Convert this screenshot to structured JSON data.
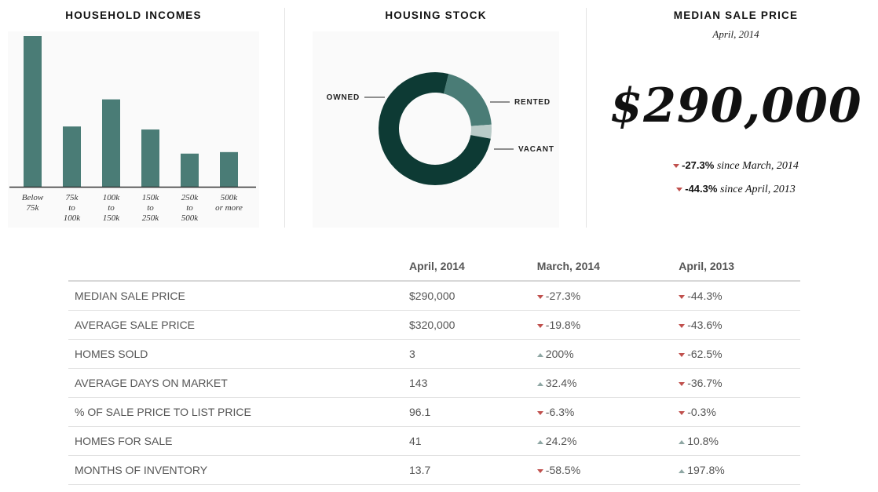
{
  "household_incomes": {
    "title": "HOUSEHOLD INCOMES",
    "chart_data": {
      "type": "bar",
      "title": "HOUSEHOLD INCOMES",
      "categories": [
        [
          "Below",
          "75k"
        ],
        [
          "75k",
          "to",
          "100k"
        ],
        [
          "100k",
          "to",
          "150k"
        ],
        [
          "150k",
          "to",
          "250k"
        ],
        [
          "250k",
          "to",
          "500k"
        ],
        [
          "500k",
          "or more"
        ]
      ],
      "values": [
        100,
        40,
        58,
        38,
        22,
        23
      ],
      "ylim": [
        0,
        100
      ],
      "bar_color": "#4a7c76"
    }
  },
  "housing_stock": {
    "title": "HOUSING STOCK",
    "chart_data": {
      "type": "pie",
      "title": "HOUSING STOCK",
      "labels": [
        "OWNED",
        "RENTED",
        "VACANT"
      ],
      "values": [
        76,
        20,
        4
      ],
      "colors": [
        "#0d3a34",
        "#4a7c76",
        "#b9cbc8"
      ]
    }
  },
  "median_sale_price": {
    "title": "MEDIAN SALE PRICE",
    "date": "April, 2014",
    "price": "$290,000",
    "changes": [
      {
        "pct": "-27.3%",
        "text": " since March, 2014",
        "direction": "down"
      },
      {
        "pct": "-44.3%",
        "text": " since April, 2013",
        "direction": "down"
      }
    ]
  },
  "table": {
    "headers": [
      "",
      "April, 2014",
      "March, 2014",
      "April, 2013"
    ],
    "rows": [
      {
        "label": "MEDIAN SALE PRICE",
        "current": "$290,000",
        "vs_month": {
          "value": "-27.3%",
          "direction": "down"
        },
        "vs_year": {
          "value": "-44.3%",
          "direction": "down"
        }
      },
      {
        "label": "AVERAGE SALE PRICE",
        "current": "$320,000",
        "vs_month": {
          "value": "-19.8%",
          "direction": "down"
        },
        "vs_year": {
          "value": "-43.6%",
          "direction": "down"
        }
      },
      {
        "label": "HOMES SOLD",
        "current": "3",
        "vs_month": {
          "value": "200%",
          "direction": "up"
        },
        "vs_year": {
          "value": "-62.5%",
          "direction": "down"
        }
      },
      {
        "label": "AVERAGE DAYS ON MARKET",
        "current": "143",
        "vs_month": {
          "value": "32.4%",
          "direction": "up"
        },
        "vs_year": {
          "value": "-36.7%",
          "direction": "down"
        }
      },
      {
        "label": "% OF SALE PRICE TO LIST PRICE",
        "current": "96.1",
        "vs_month": {
          "value": "-6.3%",
          "direction": "down"
        },
        "vs_year": {
          "value": "-0.3%",
          "direction": "down"
        }
      },
      {
        "label": "HOMES FOR SALE",
        "current": "41",
        "vs_month": {
          "value": "24.2%",
          "direction": "up"
        },
        "vs_year": {
          "value": "10.8%",
          "direction": "up"
        }
      },
      {
        "label": "MONTHS OF INVENTORY",
        "current": "13.7",
        "vs_month": {
          "value": "-58.5%",
          "direction": "down"
        },
        "vs_year": {
          "value": "197.8%",
          "direction": "up"
        }
      }
    ]
  },
  "colors": {
    "down_arrow": "#c0504d",
    "up_arrow": "#8fa7a4"
  }
}
